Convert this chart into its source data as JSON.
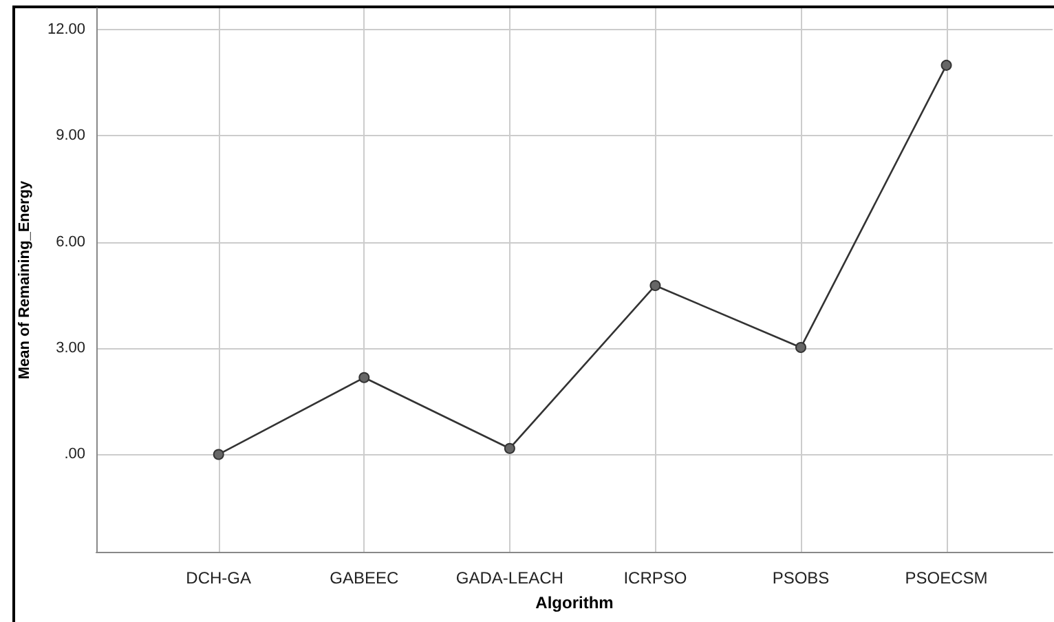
{
  "chart_data": {
    "type": "line",
    "xlabel": "Algorithm",
    "ylabel": "Mean of Remaining_Energy",
    "categories": [
      "DCH-GA",
      "GABEEC",
      "GADA-LEACH",
      "ICRPSO",
      "PSOBS",
      "PSOECSM"
    ],
    "series": [
      {
        "color": "#333333",
        "values": [
          0,
          2.17,
          0.17,
          4.77,
          3.02,
          10.99
        ]
      }
    ],
    "ylim": [
      -2.75,
      12.6
    ],
    "yticks": [
      {
        "value": 0,
        "label": ".00"
      },
      {
        "value": 3,
        "label": "3.00"
      },
      {
        "value": 6,
        "label": "6.00"
      },
      {
        "value": 9,
        "label": "9.00"
      },
      {
        "value": 12,
        "label": "12.00"
      }
    ],
    "grid": true,
    "marker": "circle",
    "line_style": "solid"
  }
}
